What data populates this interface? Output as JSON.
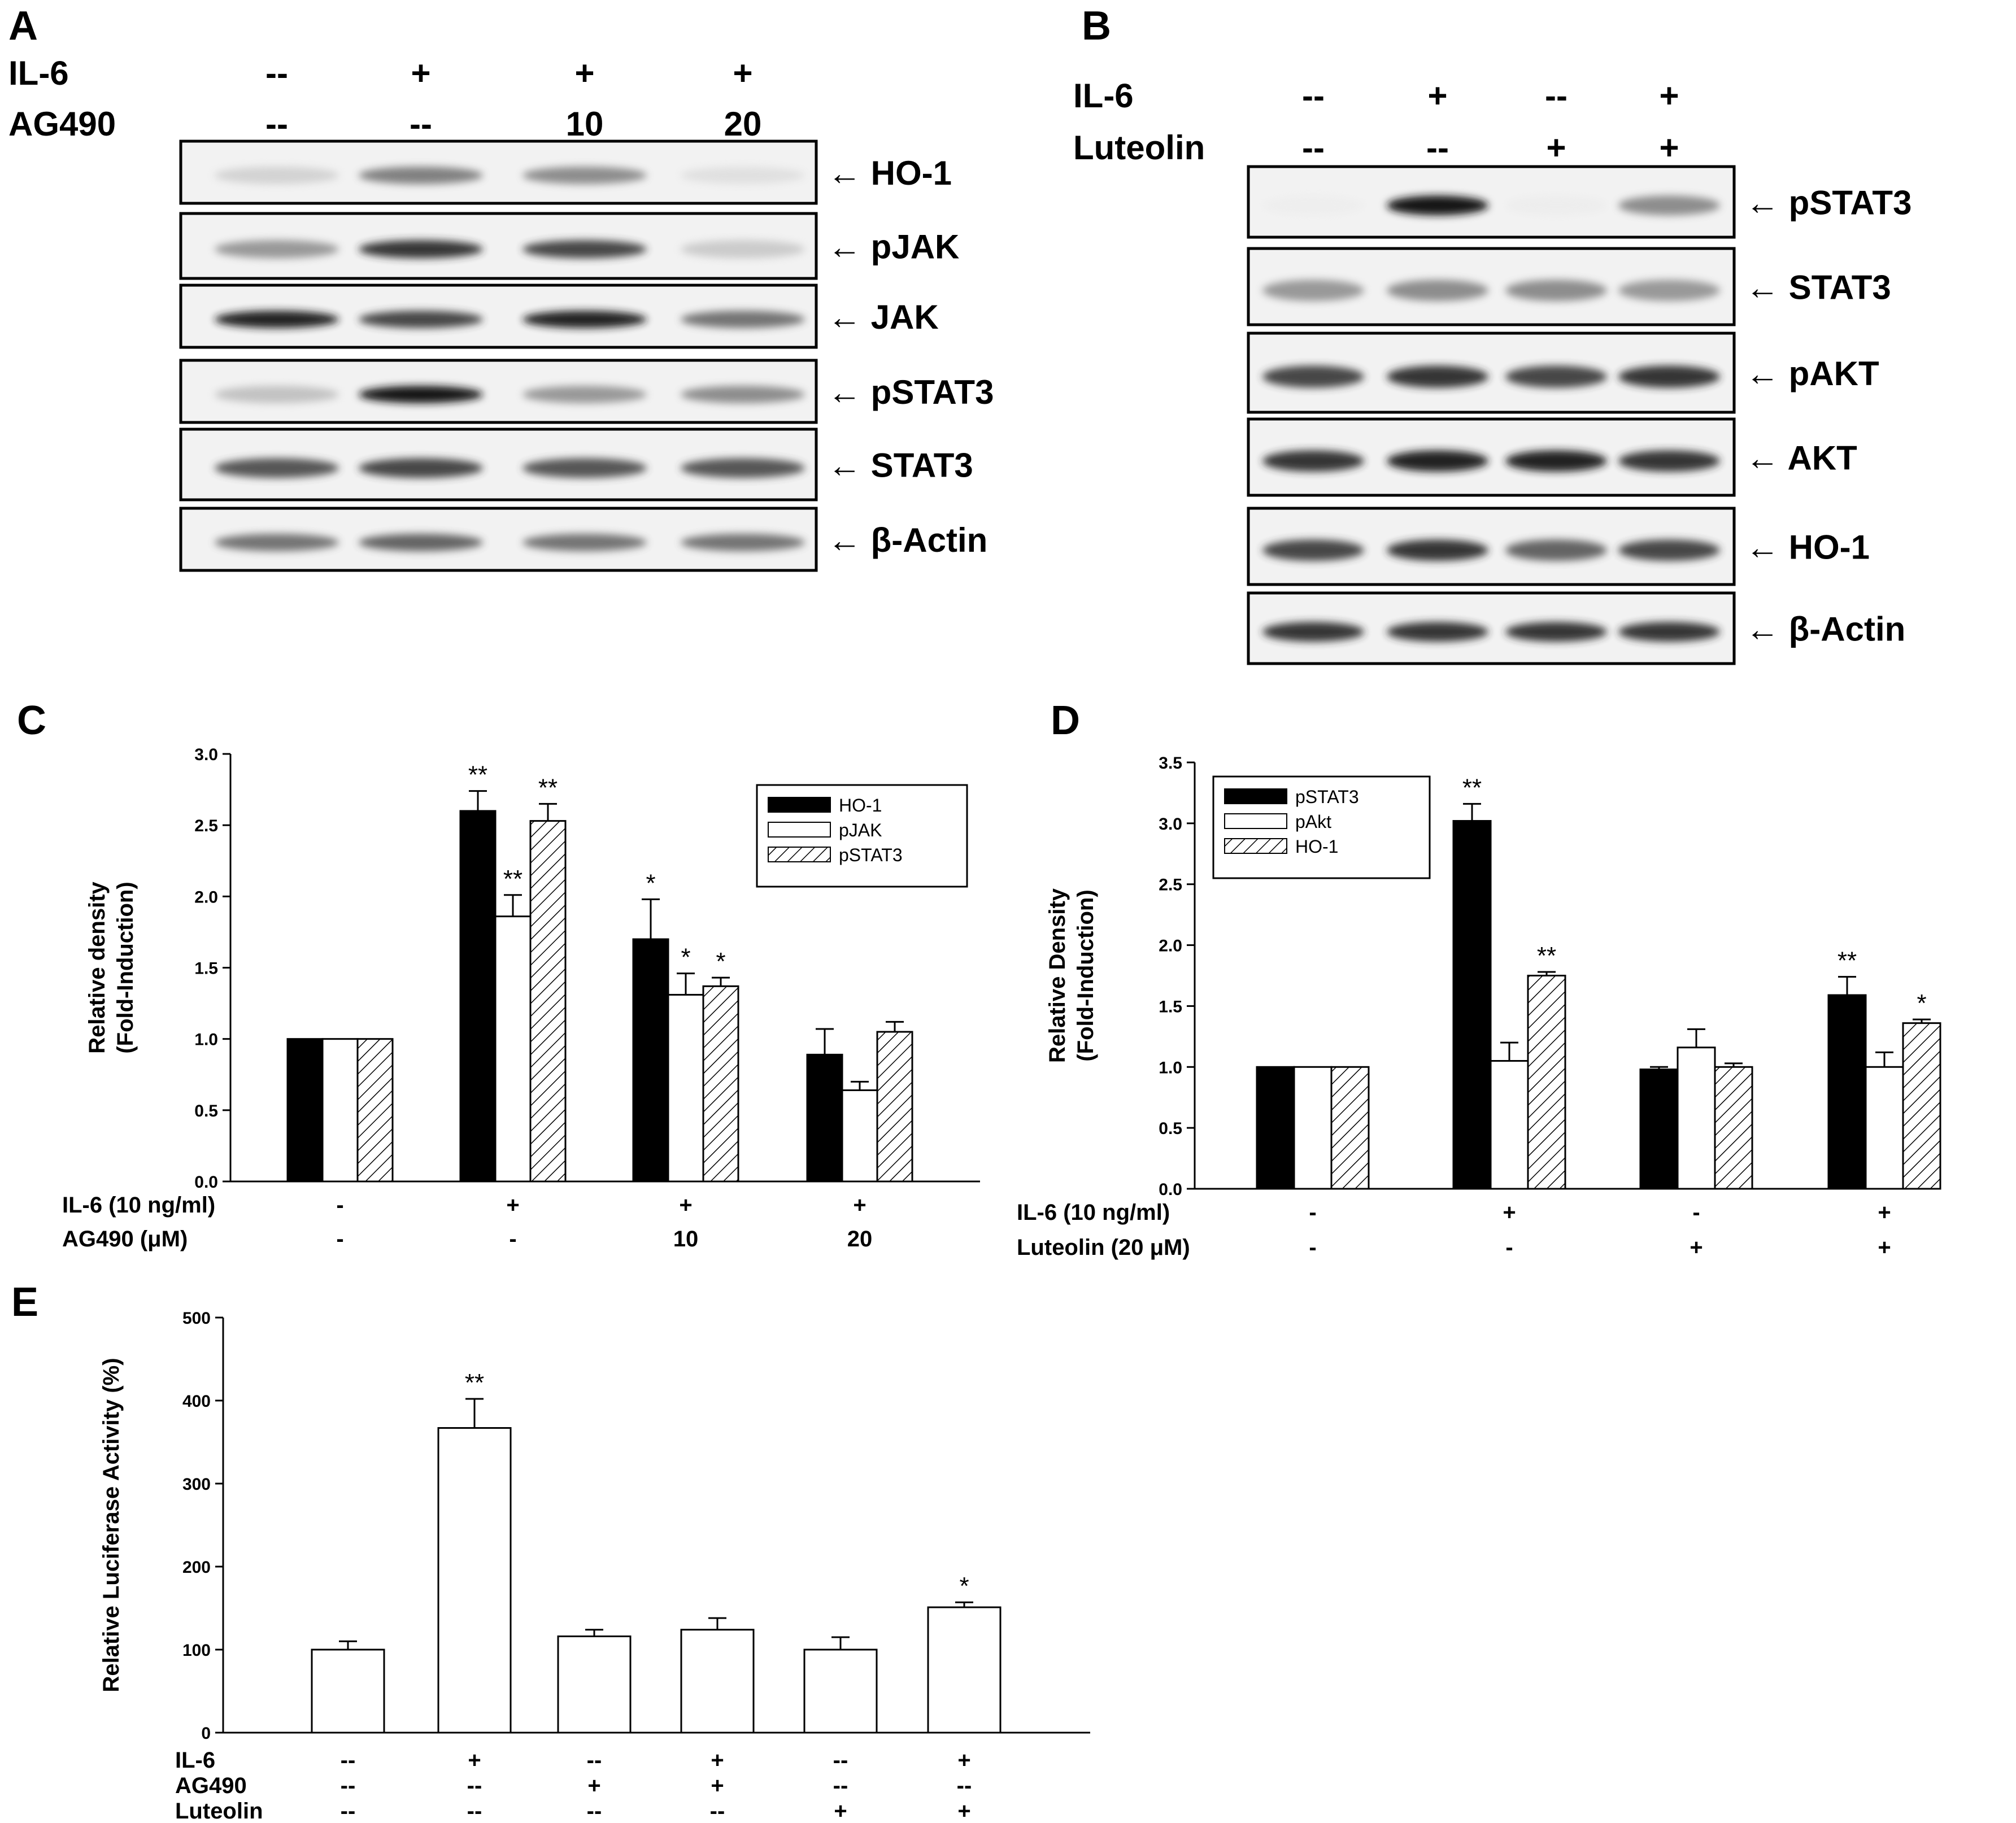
{
  "panelA": {
    "label": "A",
    "conditions": [
      {
        "name": "IL-6",
        "values": [
          "--",
          "+",
          "+",
          "+"
        ]
      },
      {
        "name": "AG490",
        "values": [
          "--",
          "--",
          "10",
          "20"
        ]
      }
    ],
    "blots": [
      {
        "label": "← HO-1",
        "pattern": [
          0.25,
          0.65,
          0.6,
          0.15
        ]
      },
      {
        "label": "← pJAK",
        "pattern": [
          0.55,
          0.9,
          0.85,
          0.3
        ]
      },
      {
        "label": "← JAK",
        "pattern": [
          0.95,
          0.85,
          0.95,
          0.7
        ]
      },
      {
        "label": "← pSTAT3",
        "pattern": [
          0.35,
          1.0,
          0.55,
          0.6
        ]
      },
      {
        "label": "← STAT3",
        "pattern": [
          0.8,
          0.85,
          0.8,
          0.8
        ]
      },
      {
        "label": "← β-Actin",
        "pattern": [
          0.7,
          0.75,
          0.7,
          0.7
        ]
      }
    ]
  },
  "panelB": {
    "label": "B",
    "conditions": [
      {
        "name": "IL-6",
        "values": [
          "--",
          "+",
          "--",
          "+"
        ]
      },
      {
        "name": "Luteolin",
        "values": [
          "--",
          "--",
          "+",
          "+"
        ]
      }
    ],
    "blots": [
      {
        "label": "← pSTAT3",
        "pattern": [
          0.02,
          1.0,
          0.03,
          0.6
        ]
      },
      {
        "label": "← STAT3",
        "pattern": [
          0.55,
          0.6,
          0.6,
          0.55
        ]
      },
      {
        "label": "← pAKT",
        "pattern": [
          0.85,
          0.9,
          0.85,
          0.9
        ]
      },
      {
        "label": "← AKT",
        "pattern": [
          0.9,
          0.95,
          0.95,
          0.9
        ]
      },
      {
        "label": "← HO-1",
        "pattern": [
          0.85,
          0.9,
          0.75,
          0.85
        ]
      },
      {
        "label": "← β-Actin",
        "pattern": [
          0.9,
          0.9,
          0.9,
          0.9
        ]
      }
    ]
  },
  "colors": {
    "black": "#000000",
    "white": "#ffffff"
  },
  "chart_data": [
    {
      "panel": "C",
      "type": "bar",
      "ylabel": "Relative density",
      "ylabel2": "(Fold-Induction)",
      "ylim": [
        0,
        3.0
      ],
      "yticks": [
        "0.0",
        "0.5",
        "1.0",
        "1.5",
        "2.0",
        "2.5",
        "3.0"
      ],
      "legend_position": "top-right",
      "condition_rows": [
        {
          "name": "IL-6 (10 ng/ml)",
          "values": [
            "-",
            "+",
            "+",
            "+"
          ]
        },
        {
          "name": "AG490 (μM)",
          "values": [
            "-",
            "-",
            "10",
            "20"
          ]
        }
      ],
      "series": [
        {
          "name": "HO-1",
          "fill": "black",
          "values": [
            1.0,
            2.6,
            1.7,
            0.89
          ],
          "errors": [
            0,
            0.14,
            0.28,
            0.18
          ],
          "marks": [
            "",
            "**",
            "*",
            ""
          ]
        },
        {
          "name": "pJAK",
          "fill": "white",
          "values": [
            1.0,
            1.86,
            1.31,
            0.64
          ],
          "errors": [
            0,
            0.15,
            0.15,
            0.06
          ],
          "marks": [
            "",
            "**",
            "*",
            ""
          ]
        },
        {
          "name": "pSTAT3",
          "fill": "hatch",
          "values": [
            1.0,
            2.53,
            1.37,
            1.05
          ],
          "errors": [
            0,
            0.12,
            0.06,
            0.07
          ],
          "marks": [
            "",
            "**",
            "*",
            ""
          ]
        }
      ]
    },
    {
      "panel": "D",
      "type": "bar",
      "ylabel": "Relative Density",
      "ylabel2": "(Fold-Induction)",
      "ylim": [
        0,
        3.5
      ],
      "yticks": [
        "0.0",
        "0.5",
        "1.0",
        "1.5",
        "2.0",
        "2.5",
        "3.0",
        "3.5"
      ],
      "legend_position": "top-left",
      "condition_rows": [
        {
          "name": "IL-6 (10 ng/ml)",
          "values": [
            "-",
            "+",
            "-",
            "+"
          ]
        },
        {
          "name": "Luteolin (20 μM)",
          "values": [
            "-",
            "-",
            "+",
            "+"
          ]
        }
      ],
      "series": [
        {
          "name": "pSTAT3",
          "fill": "black",
          "values": [
            1.0,
            3.02,
            0.98,
            1.59
          ],
          "errors": [
            0,
            0.14,
            0.02,
            0.15
          ],
          "marks": [
            "",
            "**",
            "",
            "**"
          ]
        },
        {
          "name": "pAkt",
          "fill": "white",
          "values": [
            1.0,
            1.05,
            1.16,
            1.0
          ],
          "errors": [
            0,
            0.15,
            0.15,
            0.12
          ],
          "marks": [
            "",
            "",
            "",
            ""
          ]
        },
        {
          "name": "HO-1",
          "fill": "hatch",
          "values": [
            1.0,
            1.75,
            1.0,
            1.36
          ],
          "errors": [
            0,
            0.03,
            0.03,
            0.03
          ],
          "marks": [
            "",
            "**",
            "",
            "*"
          ]
        }
      ]
    },
    {
      "panel": "E",
      "type": "bar",
      "ylabel": "Relative  Luciferase  Activity (%)",
      "ylim": [
        0,
        500
      ],
      "yticks": [
        "0",
        "100",
        "200",
        "300",
        "400",
        "500"
      ],
      "condition_rows": [
        {
          "name": "IL-6",
          "values": [
            "--",
            "+",
            "--",
            "+",
            "--",
            "+"
          ]
        },
        {
          "name": "AG490",
          "values": [
            "--",
            "--",
            "+",
            "+",
            "--",
            "--"
          ]
        },
        {
          "name": "Luteolin",
          "values": [
            "--",
            "--",
            "--",
            "--",
            "+",
            "+"
          ]
        }
      ],
      "series": [
        {
          "name": "",
          "fill": "white",
          "values": [
            100,
            367,
            116,
            124,
            100,
            151
          ],
          "errors": [
            10,
            35,
            8,
            14,
            15,
            6
          ],
          "marks": [
            "",
            "**",
            "",
            "",
            "",
            "*"
          ]
        }
      ]
    }
  ]
}
